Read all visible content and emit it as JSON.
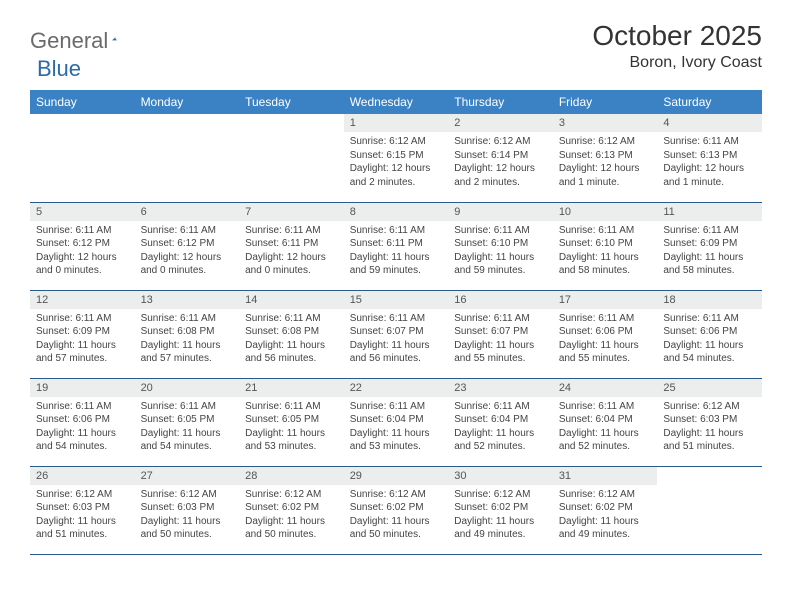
{
  "logo": {
    "general": "General",
    "blue": "Blue"
  },
  "title": "October 2025",
  "location": "Boron, Ivory Coast",
  "colors": {
    "header_bg": "#3b82c4",
    "header_text": "#ffffff",
    "daynum_bg": "#eceded",
    "border": "#2a5a8a",
    "logo_blue": "#2d6aa8",
    "logo_gray": "#6b6b6b"
  },
  "weekdays": [
    "Sunday",
    "Monday",
    "Tuesday",
    "Wednesday",
    "Thursday",
    "Friday",
    "Saturday"
  ],
  "weeks": [
    [
      {
        "n": "",
        "sr": "",
        "ss": "",
        "dl": ""
      },
      {
        "n": "",
        "sr": "",
        "ss": "",
        "dl": ""
      },
      {
        "n": "",
        "sr": "",
        "ss": "",
        "dl": ""
      },
      {
        "n": "1",
        "sr": "6:12 AM",
        "ss": "6:15 PM",
        "dl": "12 hours and 2 minutes."
      },
      {
        "n": "2",
        "sr": "6:12 AM",
        "ss": "6:14 PM",
        "dl": "12 hours and 2 minutes."
      },
      {
        "n": "3",
        "sr": "6:12 AM",
        "ss": "6:13 PM",
        "dl": "12 hours and 1 minute."
      },
      {
        "n": "4",
        "sr": "6:11 AM",
        "ss": "6:13 PM",
        "dl": "12 hours and 1 minute."
      }
    ],
    [
      {
        "n": "5",
        "sr": "6:11 AM",
        "ss": "6:12 PM",
        "dl": "12 hours and 0 minutes."
      },
      {
        "n": "6",
        "sr": "6:11 AM",
        "ss": "6:12 PM",
        "dl": "12 hours and 0 minutes."
      },
      {
        "n": "7",
        "sr": "6:11 AM",
        "ss": "6:11 PM",
        "dl": "12 hours and 0 minutes."
      },
      {
        "n": "8",
        "sr": "6:11 AM",
        "ss": "6:11 PM",
        "dl": "11 hours and 59 minutes."
      },
      {
        "n": "9",
        "sr": "6:11 AM",
        "ss": "6:10 PM",
        "dl": "11 hours and 59 minutes."
      },
      {
        "n": "10",
        "sr": "6:11 AM",
        "ss": "6:10 PM",
        "dl": "11 hours and 58 minutes."
      },
      {
        "n": "11",
        "sr": "6:11 AM",
        "ss": "6:09 PM",
        "dl": "11 hours and 58 minutes."
      }
    ],
    [
      {
        "n": "12",
        "sr": "6:11 AM",
        "ss": "6:09 PM",
        "dl": "11 hours and 57 minutes."
      },
      {
        "n": "13",
        "sr": "6:11 AM",
        "ss": "6:08 PM",
        "dl": "11 hours and 57 minutes."
      },
      {
        "n": "14",
        "sr": "6:11 AM",
        "ss": "6:08 PM",
        "dl": "11 hours and 56 minutes."
      },
      {
        "n": "15",
        "sr": "6:11 AM",
        "ss": "6:07 PM",
        "dl": "11 hours and 56 minutes."
      },
      {
        "n": "16",
        "sr": "6:11 AM",
        "ss": "6:07 PM",
        "dl": "11 hours and 55 minutes."
      },
      {
        "n": "17",
        "sr": "6:11 AM",
        "ss": "6:06 PM",
        "dl": "11 hours and 55 minutes."
      },
      {
        "n": "18",
        "sr": "6:11 AM",
        "ss": "6:06 PM",
        "dl": "11 hours and 54 minutes."
      }
    ],
    [
      {
        "n": "19",
        "sr": "6:11 AM",
        "ss": "6:06 PM",
        "dl": "11 hours and 54 minutes."
      },
      {
        "n": "20",
        "sr": "6:11 AM",
        "ss": "6:05 PM",
        "dl": "11 hours and 54 minutes."
      },
      {
        "n": "21",
        "sr": "6:11 AM",
        "ss": "6:05 PM",
        "dl": "11 hours and 53 minutes."
      },
      {
        "n": "22",
        "sr": "6:11 AM",
        "ss": "6:04 PM",
        "dl": "11 hours and 53 minutes."
      },
      {
        "n": "23",
        "sr": "6:11 AM",
        "ss": "6:04 PM",
        "dl": "11 hours and 52 minutes."
      },
      {
        "n": "24",
        "sr": "6:11 AM",
        "ss": "6:04 PM",
        "dl": "11 hours and 52 minutes."
      },
      {
        "n": "25",
        "sr": "6:12 AM",
        "ss": "6:03 PM",
        "dl": "11 hours and 51 minutes."
      }
    ],
    [
      {
        "n": "26",
        "sr": "6:12 AM",
        "ss": "6:03 PM",
        "dl": "11 hours and 51 minutes."
      },
      {
        "n": "27",
        "sr": "6:12 AM",
        "ss": "6:03 PM",
        "dl": "11 hours and 50 minutes."
      },
      {
        "n": "28",
        "sr": "6:12 AM",
        "ss": "6:02 PM",
        "dl": "11 hours and 50 minutes."
      },
      {
        "n": "29",
        "sr": "6:12 AM",
        "ss": "6:02 PM",
        "dl": "11 hours and 50 minutes."
      },
      {
        "n": "30",
        "sr": "6:12 AM",
        "ss": "6:02 PM",
        "dl": "11 hours and 49 minutes."
      },
      {
        "n": "31",
        "sr": "6:12 AM",
        "ss": "6:02 PM",
        "dl": "11 hours and 49 minutes."
      },
      {
        "n": "",
        "sr": "",
        "ss": "",
        "dl": ""
      }
    ]
  ],
  "labels": {
    "sunrise": "Sunrise:",
    "sunset": "Sunset:",
    "daylight": "Daylight:"
  }
}
